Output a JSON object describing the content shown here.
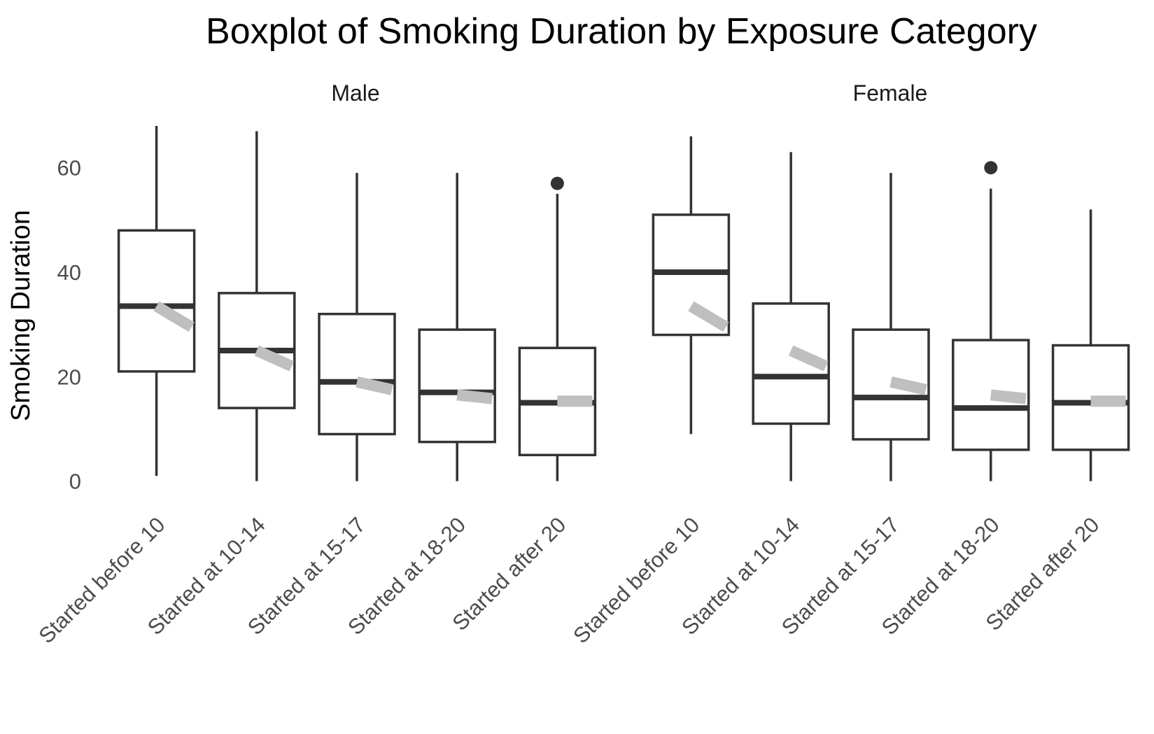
{
  "chart_data": {
    "type": "boxplot",
    "title": "Boxplot of Smoking Duration by Exposure Category",
    "xlabel": "",
    "ylabel": "Smoking Duration",
    "ylim": [
      -3,
      68
    ],
    "yticks": [
      0,
      20,
      40,
      60
    ],
    "grid": false,
    "categories": [
      "Started before 10",
      "Started at 10-14",
      "Started at 15-17",
      "Started at 18-20",
      "Started after 20"
    ],
    "colors": {
      "box": "#333333",
      "trend": "#bfbfbf",
      "background": "#ffffff"
    },
    "facets": [
      {
        "label": "Male",
        "boxes": [
          {
            "category": "Started before 10",
            "whisker_low": 1,
            "q1": 21,
            "median": 33.5,
            "q3": 48,
            "whisker_high": 68,
            "outliers": []
          },
          {
            "category": "Started at 10-14",
            "whisker_low": 0,
            "q1": 14,
            "median": 25,
            "q3": 36,
            "whisker_high": 67,
            "outliers": []
          },
          {
            "category": "Started at 15-17",
            "whisker_low": 0,
            "q1": 9,
            "median": 19,
            "q3": 32,
            "whisker_high": 59,
            "outliers": []
          },
          {
            "category": "Started at 18-20",
            "whisker_low": 0,
            "q1": 7.5,
            "median": 17,
            "q3": 29,
            "whisker_high": 59,
            "outliers": []
          },
          {
            "category": "Started after 20",
            "whisker_low": 0,
            "q1": 5,
            "median": 15,
            "q3": 25.5,
            "whisker_high": 55,
            "outliers": [
              57
            ]
          }
        ],
        "trend_segments": [
          {
            "category": "Started before 10",
            "y_start": 33.5,
            "y_end": 29.5
          },
          {
            "category": "Started at 10-14",
            "y_start": 25,
            "y_end": 22
          },
          {
            "category": "Started at 15-17",
            "y_start": 19,
            "y_end": 17.5
          },
          {
            "category": "Started at 18-20",
            "y_start": 16.5,
            "y_end": 15.8
          },
          {
            "category": "Started after 20",
            "y_start": 15.3,
            "y_end": 15.3
          }
        ]
      },
      {
        "label": "Female",
        "boxes": [
          {
            "category": "Started before 10",
            "whisker_low": 9,
            "q1": 28,
            "median": 40,
            "q3": 51,
            "whisker_high": 66,
            "outliers": []
          },
          {
            "category": "Started at 10-14",
            "whisker_low": 0,
            "q1": 11,
            "median": 20,
            "q3": 34,
            "whisker_high": 63,
            "outliers": []
          },
          {
            "category": "Started at 15-17",
            "whisker_low": 0,
            "q1": 8,
            "median": 16,
            "q3": 29,
            "whisker_high": 59,
            "outliers": []
          },
          {
            "category": "Started at 18-20",
            "whisker_low": 0,
            "q1": 6,
            "median": 14,
            "q3": 27,
            "whisker_high": 56,
            "outliers": [
              60
            ]
          },
          {
            "category": "Started after 20",
            "whisker_low": 0,
            "q1": 6,
            "median": 15,
            "q3": 26,
            "whisker_high": 52,
            "outliers": []
          }
        ],
        "trend_segments": [
          {
            "category": "Started before 10",
            "y_start": 33.5,
            "y_end": 29.5
          },
          {
            "category": "Started at 10-14",
            "y_start": 25,
            "y_end": 22
          },
          {
            "category": "Started at 15-17",
            "y_start": 19,
            "y_end": 17.5
          },
          {
            "category": "Started at 18-20",
            "y_start": 16.5,
            "y_end": 15.8
          },
          {
            "category": "Started after 20",
            "y_start": 15.3,
            "y_end": 15.3
          }
        ]
      }
    ]
  }
}
